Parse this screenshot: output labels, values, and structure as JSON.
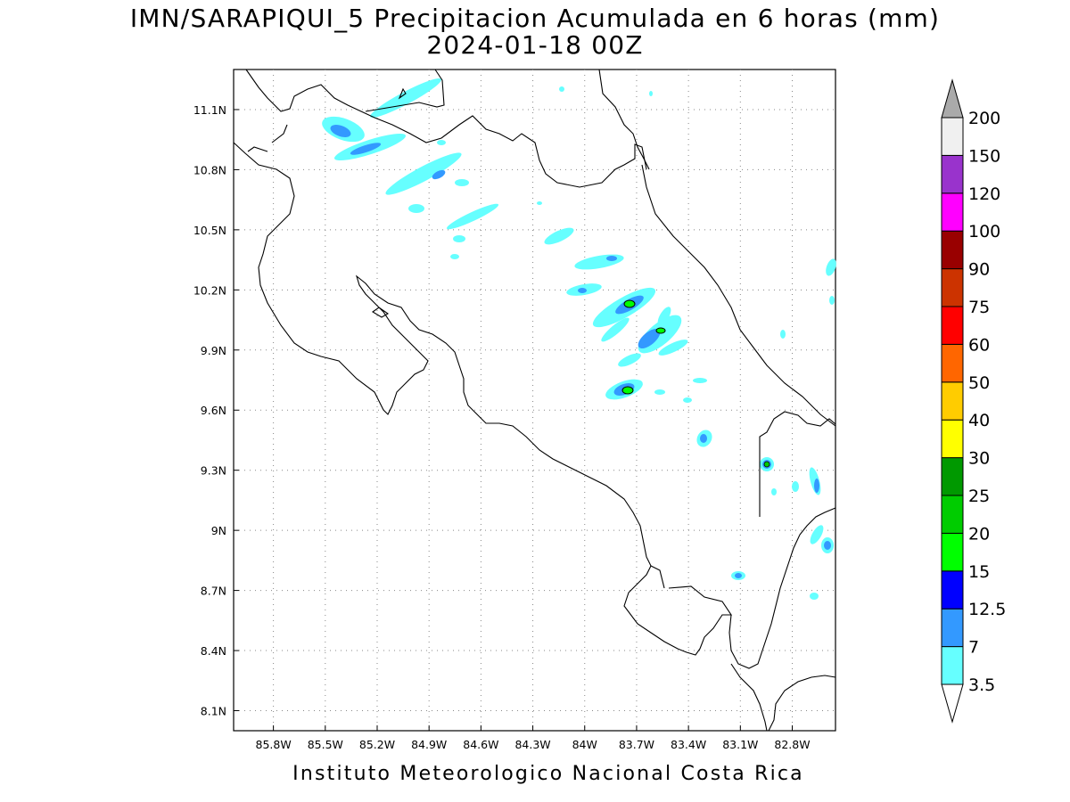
{
  "title_line1": "IMN/SARAPIQUI_5 Precipitacion Acumulada en 6 horas (mm)",
  "title_line2": "2024-01-18 00Z",
  "footer": "Instituto Meteorologico Nacional Costa Rica",
  "map": {
    "lon_range": [
      -86.03,
      -82.55
    ],
    "lat_range": [
      8.0,
      11.3
    ],
    "x_ticks": [
      "85.8W",
      "85.5W",
      "85.2W",
      "84.9W",
      "84.6W",
      "84.3W",
      "84W",
      "83.7W",
      "83.4W",
      "83.1W",
      "82.8W"
    ],
    "y_ticks": [
      "11.1N",
      "10.8N",
      "10.5N",
      "10.2N",
      "9.9N",
      "9.6N",
      "9.3N",
      "9N",
      "8.7N",
      "8.4N",
      "8.1N"
    ],
    "grid": "dotted",
    "coastline_color": "#000000"
  },
  "colorbar": {
    "levels": [
      "3.5",
      "7",
      "12.5",
      "15",
      "20",
      "25",
      "30",
      "40",
      "50",
      "60",
      "75",
      "90",
      "100",
      "120",
      "150",
      "200"
    ],
    "colors": [
      "#66ffff",
      "#3399ff",
      "#0000ff",
      "#00ff00",
      "#00cc00",
      "#009900",
      "#ffff00",
      "#ffcc00",
      "#ff6600",
      "#ff0000",
      "#cc3300",
      "#990000",
      "#ff00ff",
      "#9933cc",
      "#f0f0f0",
      "#aaaaaa"
    ]
  }
}
